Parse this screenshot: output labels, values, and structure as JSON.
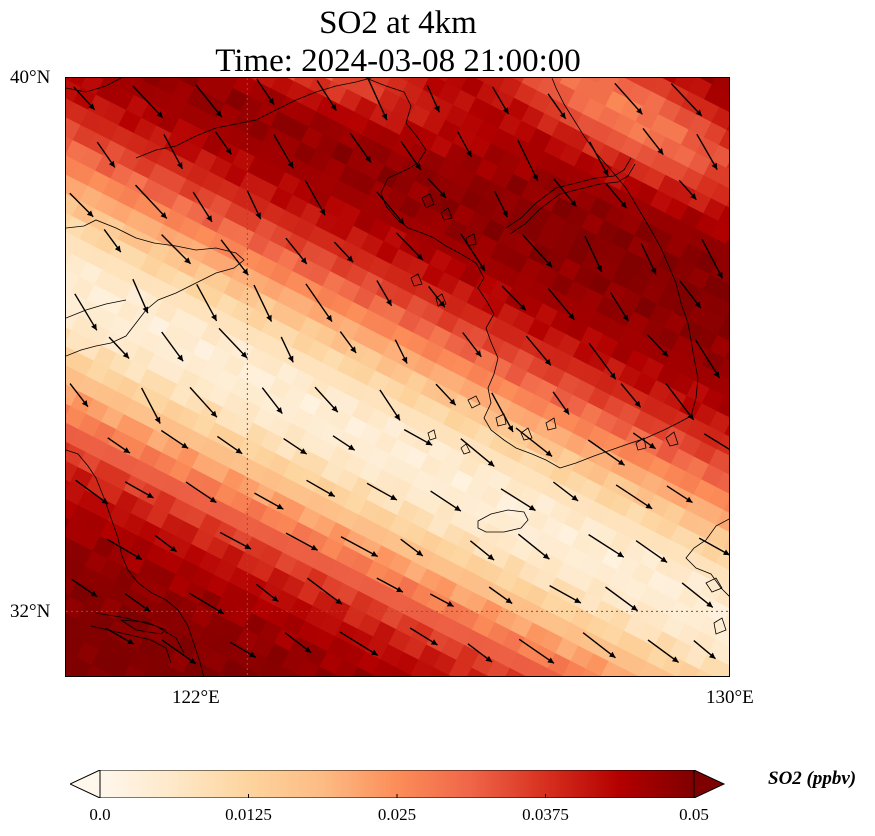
{
  "title": {
    "line1": "SO2 at 4km",
    "line2": "Time: 2024-03-08 21:00:00"
  },
  "map": {
    "lon_range": [
      119,
      130
    ],
    "lat_range": [
      31,
      40
    ],
    "lat_ticks": [
      {
        "value": 40,
        "label": "40°N"
      },
      {
        "value": 32,
        "label": "32°N"
      }
    ],
    "lon_ticks": [
      {
        "value": 122,
        "label": "122°E"
      },
      {
        "value": 130,
        "label": "130°E"
      }
    ],
    "gridlines": "dotted at 122°E and 32°N",
    "wind_vectors": "black arrows, mostly pointing east-southeast",
    "coastlines": true
  },
  "colorbar": {
    "cmap": "OrRd",
    "min": 0,
    "max": 0.05,
    "extend": "both",
    "ticks": [
      "0.0",
      "0.0125",
      "0.025",
      "0.0375",
      "0.05"
    ],
    "label": "SO2 (ppbv)",
    "colors": [
      "#fff7ec",
      "#fee8c8",
      "#fdd49e",
      "#fdbb84",
      "#fc8d59",
      "#ef6548",
      "#d7301f",
      "#b30000",
      "#7f0000"
    ]
  }
}
